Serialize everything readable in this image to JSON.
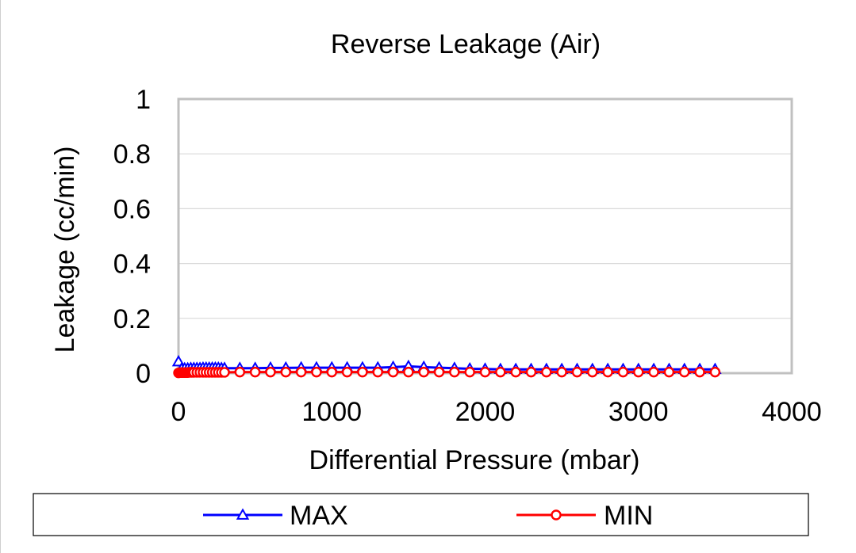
{
  "chart_data": {
    "type": "line",
    "title": "Reverse Leakage (Air)",
    "xlabel": "Differential Pressure (mbar)",
    "ylabel": "Leakage (cc/min)",
    "xlim": [
      0,
      4000
    ],
    "ylim": [
      0,
      1
    ],
    "x_ticks": [
      0,
      1000,
      2000,
      3000,
      4000
    ],
    "y_ticks": [
      0,
      0.2,
      0.4,
      0.6,
      0.8,
      1
    ],
    "x_tick_labels": [
      "0",
      "1000",
      "2000",
      "3000",
      "4000"
    ],
    "y_tick_labels": [
      "0",
      "0.2",
      "0.4",
      "0.6",
      "0.8",
      "1"
    ],
    "grid": true,
    "legend_position": "bottom",
    "series": [
      {
        "name": "MAX",
        "color": "#0000ff",
        "marker": "triangle",
        "x": [
          0,
          20,
          40,
          60,
          80,
          100,
          120,
          140,
          160,
          180,
          200,
          220,
          240,
          260,
          280,
          300,
          400,
          500,
          600,
          700,
          800,
          900,
          1000,
          1100,
          1200,
          1300,
          1400,
          1500,
          1600,
          1700,
          1800,
          1900,
          2000,
          2100,
          2200,
          2300,
          2400,
          2500,
          2600,
          2700,
          2800,
          2900,
          3000,
          3100,
          3200,
          3300,
          3400,
          3500
        ],
        "y": [
          0.042,
          0.016,
          0.017,
          0.017,
          0.018,
          0.018,
          0.018,
          0.018,
          0.019,
          0.019,
          0.019,
          0.019,
          0.019,
          0.019,
          0.018,
          0.018,
          0.018,
          0.018,
          0.019,
          0.019,
          0.02,
          0.02,
          0.02,
          0.02,
          0.02,
          0.02,
          0.022,
          0.025,
          0.022,
          0.02,
          0.018,
          0.016,
          0.015,
          0.014,
          0.014,
          0.014,
          0.014,
          0.014,
          0.014,
          0.014,
          0.014,
          0.014,
          0.014,
          0.014,
          0.014,
          0.014,
          0.014,
          0.014
        ]
      },
      {
        "name": "MIN",
        "color": "#ff0000",
        "marker": "circle",
        "x": [
          0,
          10,
          20,
          30,
          40,
          50,
          60,
          70,
          80,
          90,
          100,
          120,
          140,
          160,
          180,
          200,
          220,
          240,
          260,
          280,
          300,
          400,
          500,
          600,
          700,
          800,
          900,
          1000,
          1100,
          1200,
          1300,
          1400,
          1500,
          1600,
          1700,
          1800,
          1900,
          2000,
          2100,
          2200,
          2300,
          2400,
          2500,
          2600,
          2700,
          2800,
          2900,
          3000,
          3100,
          3200,
          3300,
          3400,
          3500
        ],
        "y": [
          0.001,
          0.002,
          0.002,
          0.002,
          0.002,
          0.002,
          0.002,
          0.003,
          0.003,
          0.003,
          0.003,
          0.003,
          0.003,
          0.003,
          0.003,
          0.003,
          0.003,
          0.003,
          0.003,
          0.003,
          0.003,
          0.004,
          0.004,
          0.004,
          0.004,
          0.004,
          0.004,
          0.004,
          0.004,
          0.004,
          0.004,
          0.004,
          0.004,
          0.004,
          0.004,
          0.004,
          0.004,
          0.004,
          0.004,
          0.004,
          0.004,
          0.004,
          0.004,
          0.004,
          0.004,
          0.004,
          0.004,
          0.004,
          0.004,
          0.004,
          0.004,
          0.004,
          0.004
        ]
      }
    ]
  }
}
